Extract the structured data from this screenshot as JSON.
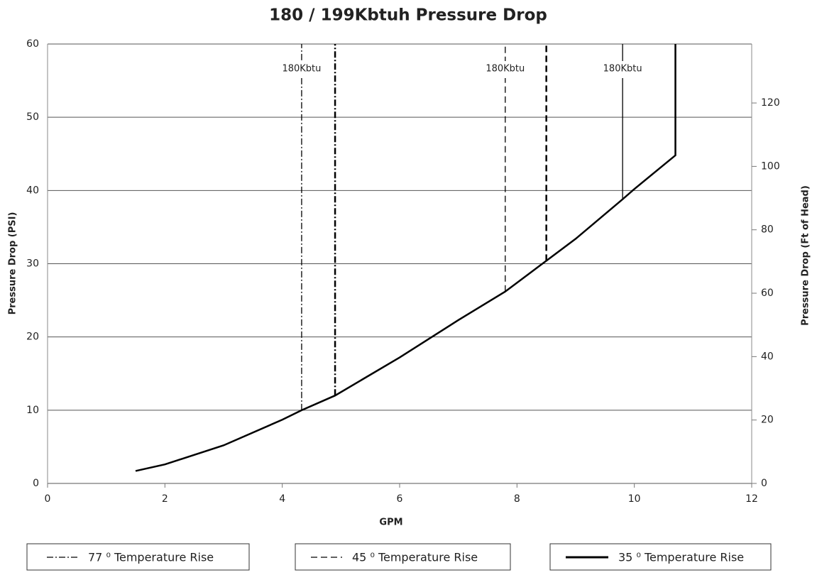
{
  "chart_data": {
    "type": "line",
    "title": "180 / 199Kbtuh Pressure Drop",
    "xlabel": "GPM",
    "ylabel": "Pressure Drop (PSI)",
    "y2label": "Pressure Drop (Ft of Head)",
    "xlim": [
      0,
      12
    ],
    "xticks": [
      0,
      2,
      4,
      6,
      8,
      10,
      12
    ],
    "ylim": [
      0,
      60
    ],
    "yticks": [
      0,
      10,
      20,
      30,
      40,
      50,
      60
    ],
    "y2lim": [
      0,
      138.6
    ],
    "y2ticks": [
      0,
      20,
      40,
      60,
      80,
      100,
      120
    ],
    "grid": true,
    "curve": {
      "color": "#000000",
      "x": [
        1.5,
        2,
        3,
        4,
        4.33,
        4.9,
        6,
        7,
        7.8,
        8.5,
        9,
        9.8,
        10,
        10.7,
        10.7
      ],
      "values": [
        1.7,
        2.6,
        5.2,
        8.7,
        10,
        12,
        17.2,
        22.3,
        26.2,
        30.4,
        33.4,
        38.8,
        40.2,
        44.8,
        60
      ]
    },
    "series": [
      {
        "name": "77 ⁰ Temperature Rise",
        "color": "#000000",
        "dash": "dashdot",
        "x": [
          4.33,
          4.9
        ],
        "values": [
          10,
          12
        ],
        "label": "180Kbtu"
      },
      {
        "name": "45 ⁰ Temperature Rise",
        "color": "#000000",
        "dash": "dashed",
        "x": [
          7.8,
          8.5
        ],
        "values": [
          26.2,
          30.4
        ],
        "label": "180Kbtu"
      },
      {
        "name": "35 ⁰ Temperature Rise",
        "color": "#000000",
        "dash": "solid",
        "x": [
          9.8
        ],
        "values": [
          38.8
        ],
        "label": "180Kbtu"
      }
    ]
  }
}
